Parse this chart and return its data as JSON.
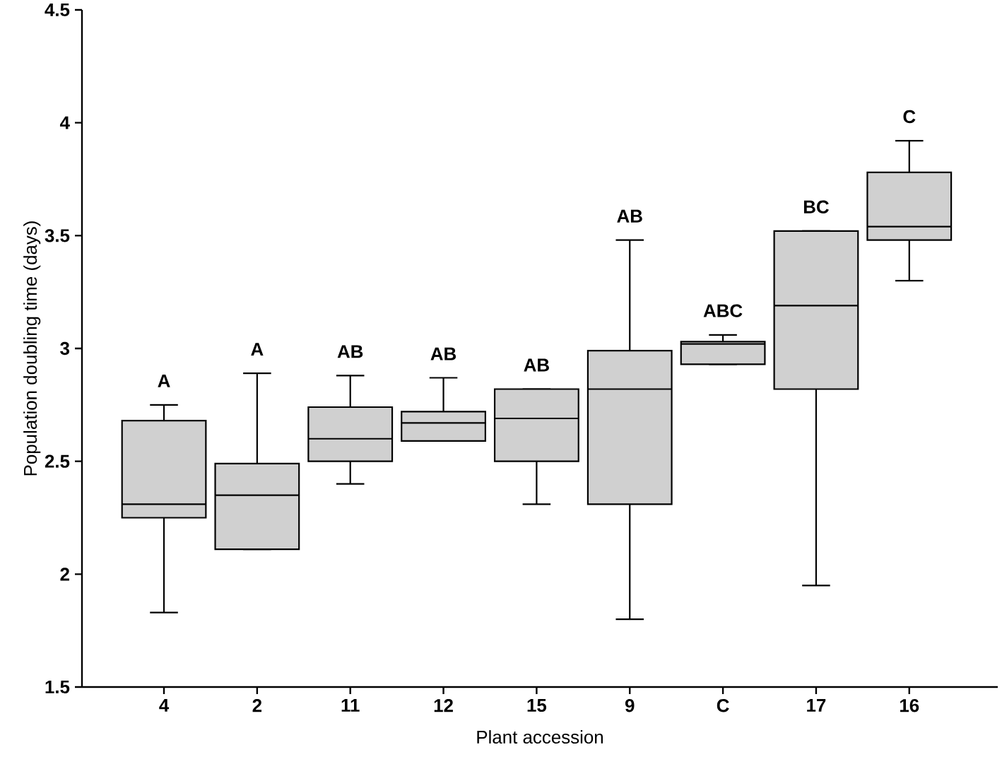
{
  "chart_data": {
    "type": "box",
    "xlabel": "Plant accession",
    "ylabel": "Population doubling time (days)",
    "categories": [
      "4",
      "2",
      "11",
      "12",
      "15",
      "9",
      "C",
      "17",
      "16"
    ],
    "color": "#d0d0d0",
    "boxes": [
      {
        "low": 1.83,
        "q1": 2.25,
        "median": 2.31,
        "q3": 2.68,
        "high": 2.75
      },
      {
        "low": 2.11,
        "q1": 2.11,
        "median": 2.35,
        "q3": 2.49,
        "high": 2.89
      },
      {
        "low": 2.4,
        "q1": 2.5,
        "median": 2.6,
        "q3": 2.74,
        "high": 2.88
      },
      {
        "low": 2.59,
        "q1": 2.59,
        "median": 2.67,
        "q3": 2.72,
        "high": 2.87
      },
      {
        "low": 2.31,
        "q1": 2.5,
        "median": 2.69,
        "q3": 2.82,
        "high": 2.82
      },
      {
        "low": 1.8,
        "q1": 2.31,
        "median": 2.82,
        "q3": 2.99,
        "high": 3.48
      },
      {
        "low": 2.93,
        "q1": 2.93,
        "median": 3.02,
        "q3": 3.03,
        "high": 3.06
      },
      {
        "low": 1.95,
        "q1": 2.82,
        "median": 3.19,
        "q3": 3.52,
        "high": 3.52
      },
      {
        "low": 3.3,
        "q1": 3.48,
        "median": 3.54,
        "q3": 3.78,
        "high": 3.92
      }
    ],
    "ylim": [
      1.5,
      4.5
    ],
    "yticks": [
      1.5,
      2,
      2.5,
      3,
      3.5,
      4,
      4.5
    ],
    "grid": false,
    "annotations": [
      "A",
      "A",
      "AB",
      "AB",
      "AB",
      "AB",
      "ABC",
      "BC",
      "C"
    ]
  }
}
